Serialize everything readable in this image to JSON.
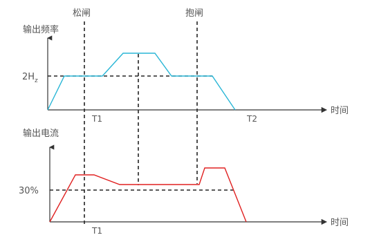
{
  "diagram": {
    "top_markers": {
      "release": "松闸",
      "hold": "抱闸"
    },
    "top_chart": {
      "y_label": "输出频率",
      "y_ref": "2H",
      "y_ref_sub": "z",
      "x_label": "时间",
      "t1": "T1",
      "t2": "T2",
      "curve_color": "#29b6d6"
    },
    "bottom_chart": {
      "y_label": "输出电流",
      "y_ref": "30%",
      "x_label": "时间",
      "t1": "T1",
      "curve_color": "#e02020"
    }
  }
}
